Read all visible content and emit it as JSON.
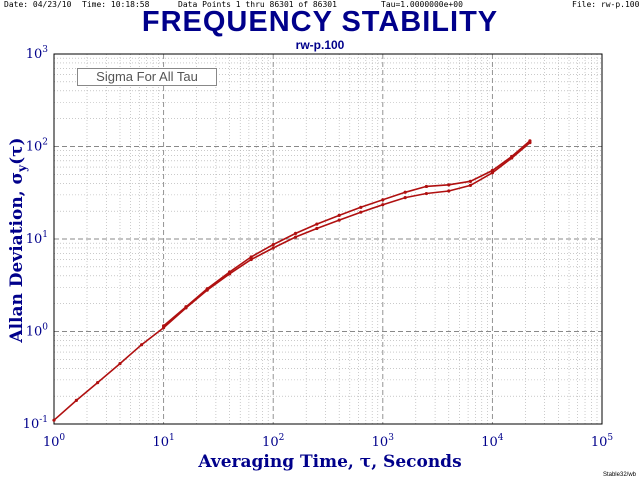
{
  "header": {
    "date": "Date: 04/23/10",
    "time": "Time: 10:18:58",
    "data_points": "Data Points 1 thru 86301 of 86301",
    "tau": "Tau=1.0000000e+00",
    "file": "File: rw-p.100"
  },
  "footer": "Stable32/wb",
  "legend": "Sigma For All Tau",
  "ylabel_text": "Allan Deviation, σy(τ)",
  "chart_data": {
    "type": "line",
    "title": "FREQUENCY STABILITY",
    "subtitle": "rw-p.100",
    "xlabel": "Averaging Time, τ, Seconds",
    "ylabel": "Allan Deviation, σy(τ)",
    "x_scale": "log",
    "y_scale": "log",
    "xlim": [
      1,
      100000
    ],
    "ylim": [
      0.1,
      1000
    ],
    "x_ticks": [
      {
        "mant": "10",
        "exp": "0"
      },
      {
        "mant": "10",
        "exp": "1"
      },
      {
        "mant": "10",
        "exp": "2"
      },
      {
        "mant": "10",
        "exp": "3"
      },
      {
        "mant": "10",
        "exp": "4"
      },
      {
        "mant": "10",
        "exp": "5"
      }
    ],
    "y_ticks": [
      {
        "mant": "10",
        "exp": "-1"
      },
      {
        "mant": "10",
        "exp": "0"
      },
      {
        "mant": "10",
        "exp": "1"
      },
      {
        "mant": "10",
        "exp": "2"
      },
      {
        "mant": "10",
        "exp": "3"
      }
    ],
    "grid": true,
    "colors": {
      "series": "#b01010",
      "text": "#00008b",
      "grid": "#888888"
    },
    "series": [
      {
        "x": [
          1,
          1.6,
          2.5,
          4,
          6.3,
          10,
          16,
          25,
          40,
          63,
          100,
          160,
          250,
          400,
          630,
          1000,
          1600,
          2500,
          4000,
          6300,
          10000,
          15000,
          22000
        ],
        "y": [
          0.11,
          0.18,
          0.28,
          0.45,
          0.72,
          1.1,
          1.8,
          2.8,
          4.2,
          6.0,
          8.0,
          10.5,
          13.0,
          16.0,
          19.5,
          23.5,
          28.0,
          31.0,
          33.0,
          38.0,
          52.0,
          75.0,
          110.0
        ]
      },
      {
        "x": [
          10,
          16,
          25,
          40,
          63,
          100,
          160,
          250,
          400,
          630,
          1000,
          1600,
          2500,
          4000,
          6300,
          10000,
          15000,
          22000
        ],
        "y": [
          1.15,
          1.85,
          2.9,
          4.4,
          6.4,
          8.7,
          11.5,
          14.5,
          18.0,
          22.0,
          26.5,
          32.0,
          37.0,
          38.5,
          42.0,
          55.0,
          78.0,
          115.0
        ]
      }
    ]
  }
}
